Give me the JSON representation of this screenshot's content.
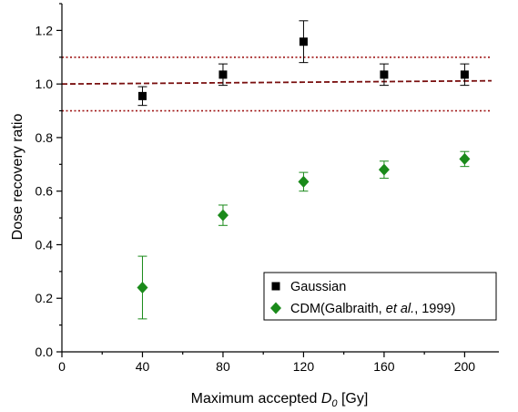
{
  "chart_data": {
    "type": "scatter",
    "xlabel": {
      "prefix": "Maximum accepted ",
      "var": "D",
      "sub": "0",
      "suffix": " [Gy]"
    },
    "ylabel": "Dose recovery ratio",
    "xlim": [
      0,
      217
    ],
    "ylim": [
      0.0,
      1.3
    ],
    "xticks": [
      0,
      40,
      80,
      120,
      160,
      200
    ],
    "yticks": [
      0.0,
      0.2,
      0.4,
      0.6,
      0.8,
      1.0,
      1.2
    ],
    "ytick_decimals": 1,
    "series": [
      {
        "name": "Gaussian",
        "marker": "square",
        "color": "#000000",
        "x": [
          40,
          80,
          120,
          160,
          200
        ],
        "y": [
          0.955,
          1.035,
          1.158,
          1.035,
          1.035
        ],
        "err": [
          0.035,
          0.04,
          0.078,
          0.04,
          0.04
        ]
      },
      {
        "name": "CDM(Galbraith, et al., 1999)",
        "legend_parts": [
          {
            "text": "CDM(Galbraith, ",
            "italic": false
          },
          {
            "text": "et al.",
            "italic": true
          },
          {
            "text": ", 1999)",
            "italic": false
          }
        ],
        "marker": "diamond",
        "color": "#1a8a1a",
        "x": [
          40,
          80,
          120,
          160,
          200
        ],
        "y": [
          0.24,
          0.51,
          0.635,
          0.68,
          0.72
        ],
        "err": [
          0.117,
          0.038,
          0.035,
          0.032,
          0.028
        ]
      }
    ],
    "reference_lines": [
      {
        "y": 1.1,
        "color": "#a01818",
        "style": "dotted"
      },
      {
        "y": 0.9,
        "color": "#a01818",
        "style": "dotted"
      },
      {
        "x0": 0,
        "y0": 1.0,
        "x1": 217,
        "y1": 1.012,
        "color": "#7a1010",
        "style": "dashed"
      }
    ],
    "legend_position": "lower-right",
    "grid": false
  }
}
